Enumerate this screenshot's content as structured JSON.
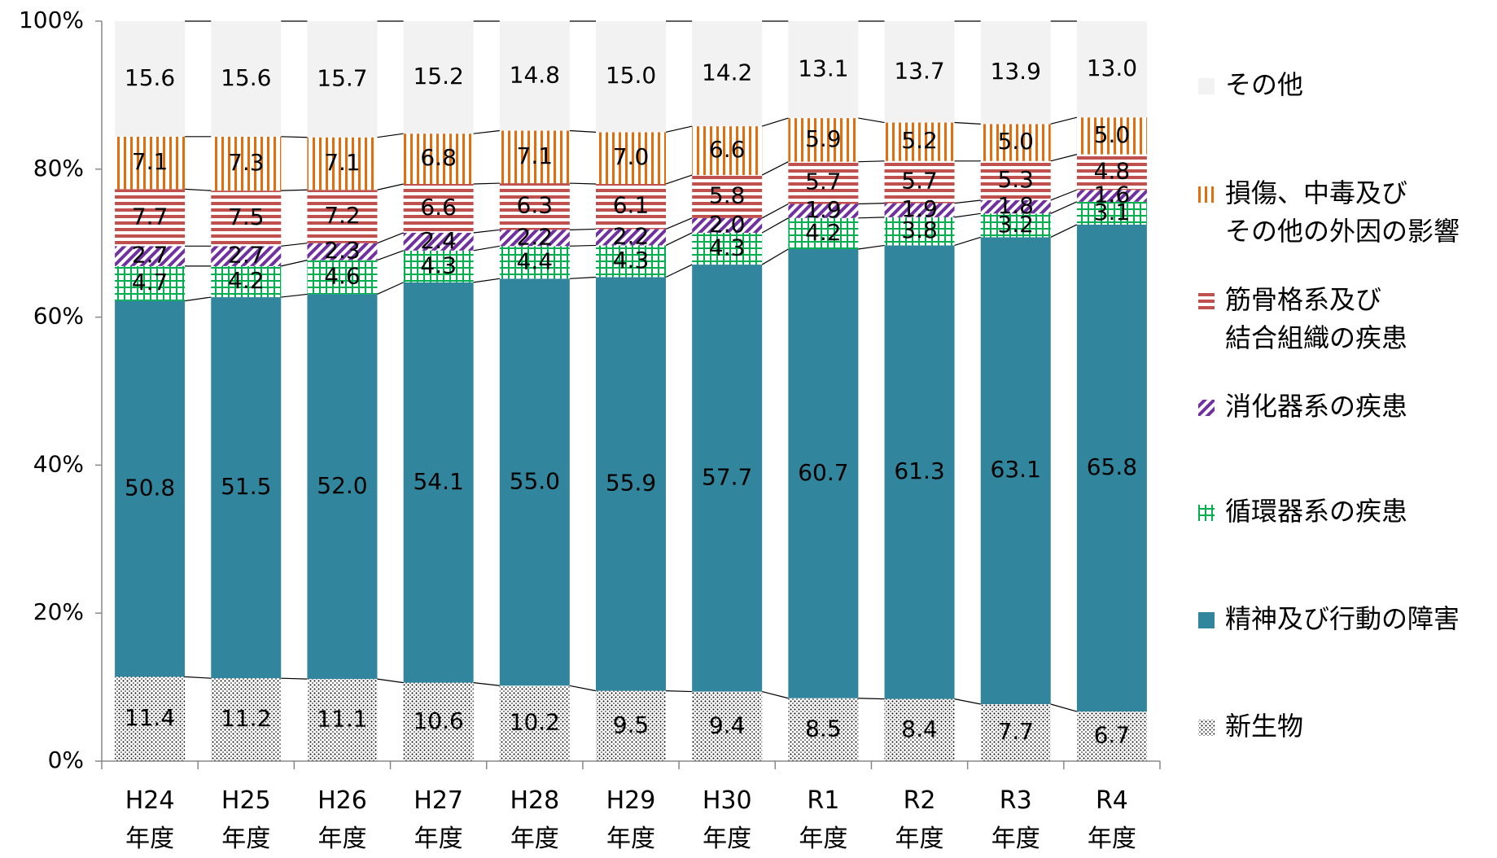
{
  "chart_data": {
    "type": "stacked-bar-percent",
    "categories": [
      "H24\n年度",
      "H25\n年度",
      "H26\n年度",
      "H27\n年度",
      "H28\n年度",
      "H29\n年度",
      "H30\n年度",
      "R1\n年度",
      "R2\n年度",
      "R3\n年度",
      "R4\n年度"
    ],
    "ylim": [
      0,
      100
    ],
    "yticks": [
      {
        "value": 0,
        "label": "0%"
      },
      {
        "value": 20,
        "label": "20%"
      },
      {
        "value": 40,
        "label": "40%"
      },
      {
        "value": 60,
        "label": "60%"
      },
      {
        "value": 80,
        "label": "80%"
      },
      {
        "value": 100,
        "label": "100%"
      }
    ],
    "legend": "right",
    "series_lines": true,
    "series": [
      {
        "name": "新生物",
        "color": "#000000",
        "pattern": "dots",
        "values": [
          11.4,
          11.2,
          11.1,
          10.6,
          10.2,
          9.5,
          9.4,
          8.5,
          8.4,
          7.7,
          6.7
        ],
        "value_labels": [
          "11.4",
          "11.2",
          "11.1",
          "10.6",
          "10.2",
          "9.5",
          "9.4",
          "8.5",
          "8.4",
          "7.7",
          "6.7"
        ]
      },
      {
        "name": "精神及び行動の障害",
        "color": "#31859c",
        "pattern": "solid",
        "values": [
          50.8,
          51.5,
          52.0,
          54.1,
          55.0,
          55.9,
          57.7,
          60.7,
          61.3,
          63.1,
          65.8
        ],
        "value_labels": [
          "50.8",
          "51.5",
          "52.0",
          "54.1",
          "55.0",
          "55.9",
          "57.7",
          "60.7",
          "61.3",
          "63.1",
          "65.8"
        ]
      },
      {
        "name": "循環器系の疾患",
        "color": "#00b050",
        "pattern": "grid",
        "values": [
          4.7,
          4.2,
          4.6,
          4.3,
          4.4,
          4.3,
          4.3,
          4.2,
          3.8,
          3.2,
          3.1
        ],
        "value_labels": [
          "4.7",
          "4.2",
          "4.6",
          "4.3",
          "4.4",
          "4.3",
          "4.3",
          "4.2",
          "3.8",
          "3.2",
          "3.1"
        ]
      },
      {
        "name": "消化器系の疾患",
        "color": "#7030a0",
        "pattern": "diagonal",
        "values": [
          2.7,
          2.7,
          2.3,
          2.4,
          2.2,
          2.2,
          2.0,
          1.9,
          1.9,
          1.8,
          1.6
        ],
        "value_labels": [
          "2.7",
          "2.7",
          "2.3",
          "2.4",
          "2.2",
          "2.2",
          "2.0",
          "1.9",
          "1.9",
          "1.8",
          "1.6"
        ]
      },
      {
        "name": "筋骨格系及び\n結合組織の疾患",
        "color": "#c0504d",
        "pattern": "horizontal",
        "values": [
          7.7,
          7.5,
          7.2,
          6.6,
          6.3,
          6.1,
          5.8,
          5.7,
          5.7,
          5.3,
          4.8
        ],
        "value_labels": [
          "7.7",
          "7.5",
          "7.2",
          "6.6",
          "6.3",
          "6.1",
          "5.8",
          "5.7",
          "5.7",
          "5.3",
          "4.8"
        ]
      },
      {
        "name": "損傷、中毒及び\nその他の外因の影響",
        "color": "#e46c0a",
        "pattern": "vertical",
        "values": [
          7.1,
          7.3,
          7.1,
          6.8,
          7.1,
          7.0,
          6.6,
          5.9,
          5.2,
          5.0,
          5.0
        ],
        "value_labels": [
          "7.1",
          "7.3",
          "7.1",
          "6.8",
          "7.1",
          "7.0",
          "6.6",
          "5.9",
          "5.2",
          "5.0",
          "5.0"
        ]
      },
      {
        "name": "その他",
        "color": "#f2f2f2",
        "pattern": "solid",
        "values": [
          15.6,
          15.6,
          15.7,
          15.2,
          14.8,
          15.0,
          14.2,
          13.1,
          13.7,
          13.9,
          13.0
        ],
        "value_labels": [
          "15.6",
          "15.6",
          "15.7",
          "15.2",
          "14.8",
          "15.0",
          "14.2",
          "13.1",
          "13.7",
          "13.9",
          "13.0"
        ]
      }
    ]
  }
}
